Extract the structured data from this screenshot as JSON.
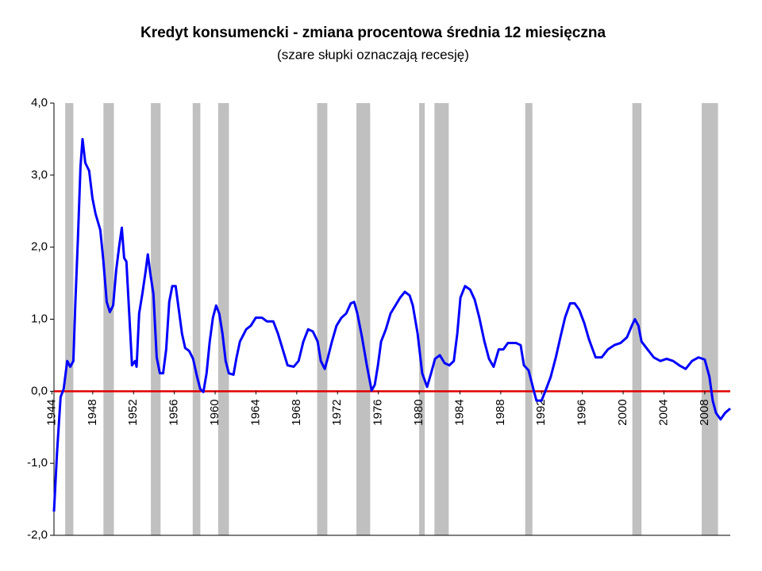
{
  "chart_data": {
    "type": "line",
    "title": "Kredyt konsumencki - zmiana procentowa średnia 12 miesięczna",
    "subtitle": "(szare słupki oznaczają recesję)",
    "x": [
      1944.2,
      1944.5,
      1944.85,
      1945.15,
      1945.5,
      1945.8,
      1946.1,
      1946.3,
      1946.55,
      1946.8,
      1947.0,
      1947.27,
      1947.65,
      1947.97,
      1948.28,
      1948.74,
      1949.05,
      1949.37,
      1949.68,
      1950.0,
      1950.3,
      1950.6,
      1950.85,
      1951.08,
      1951.3,
      1951.6,
      1951.85,
      1952.15,
      1952.3,
      1952.55,
      1952.86,
      1953.2,
      1953.4,
      1953.65,
      1953.95,
      1954.27,
      1954.58,
      1954.9,
      1955.2,
      1955.5,
      1955.8,
      1956.13,
      1956.44,
      1956.75,
      1957.06,
      1957.45,
      1957.84,
      1958.23,
      1958.54,
      1958.85,
      1959.16,
      1959.47,
      1959.78,
      1960.1,
      1960.4,
      1960.72,
      1961.03,
      1961.34,
      1961.8,
      1962.1,
      1962.43,
      1963.05,
      1963.5,
      1963.98,
      1964.6,
      1965.07,
      1965.7,
      1966.16,
      1966.63,
      1967.1,
      1967.7,
      1968.18,
      1968.65,
      1969.12,
      1969.58,
      1970.05,
      1970.36,
      1970.75,
      1971.06,
      1971.45,
      1971.9,
      1972.38,
      1972.85,
      1973.3,
      1973.63,
      1973.94,
      1974.4,
      1974.87,
      1975.34,
      1975.65,
      1975.96,
      1976.27,
      1976.74,
      1977.2,
      1977.67,
      1978.14,
      1978.6,
      1979.07,
      1979.38,
      1979.85,
      1980.3,
      1980.78,
      1981.17,
      1981.56,
      1982.03,
      1982.5,
      1982.96,
      1983.4,
      1983.74,
      1984.05,
      1984.5,
      1985.0,
      1985.45,
      1985.9,
      1986.4,
      1986.85,
      1987.3,
      1987.8,
      1988.25,
      1988.7,
      1989.5,
      1989.95,
      1990.27,
      1990.73,
      1991.2,
      1991.5,
      1992.0,
      1992.45,
      1992.9,
      1993.4,
      1993.85,
      1994.3,
      1994.8,
      1995.25,
      1995.7,
      1996.2,
      1996.65,
      1997.3,
      1997.9,
      1998.5,
      1999.13,
      1999.75,
      2000.38,
      2000.85,
      2001.15,
      2001.5,
      2001.8,
      2002.4,
      2003.0,
      2003.65,
      2004.26,
      2004.9,
      2005.5,
      2006.13,
      2006.75,
      2007.38,
      2008.0,
      2008.46,
      2008.78,
      2009.1,
      2009.55,
      2010.0,
      2010.5
    ],
    "values": [
      -1.67,
      -0.85,
      -0.08,
      0.03,
      0.42,
      0.34,
      0.42,
      1.24,
      2.13,
      3.12,
      3.5,
      3.17,
      3.06,
      2.68,
      2.46,
      2.24,
      1.8,
      1.24,
      1.1,
      1.19,
      1.68,
      2.02,
      2.27,
      1.85,
      1.8,
      1.02,
      0.36,
      0.42,
      0.34,
      1.08,
      1.35,
      1.68,
      1.9,
      1.63,
      1.35,
      0.47,
      0.25,
      0.25,
      0.58,
      1.24,
      1.46,
      1.46,
      1.13,
      0.8,
      0.6,
      0.56,
      0.45,
      0.2,
      0.03,
      -0.01,
      0.25,
      0.69,
      1.02,
      1.19,
      1.08,
      0.8,
      0.42,
      0.25,
      0.23,
      0.47,
      0.69,
      0.86,
      0.91,
      1.02,
      1.02,
      0.97,
      0.97,
      0.8,
      0.58,
      0.36,
      0.34,
      0.42,
      0.69,
      0.86,
      0.83,
      0.69,
      0.42,
      0.31,
      0.47,
      0.69,
      0.91,
      1.02,
      1.08,
      1.22,
      1.24,
      1.08,
      0.75,
      0.36,
      0.01,
      0.09,
      0.36,
      0.69,
      0.86,
      1.08,
      1.19,
      1.3,
      1.38,
      1.33,
      1.19,
      0.8,
      0.25,
      0.06,
      0.25,
      0.45,
      0.5,
      0.39,
      0.36,
      0.42,
      0.8,
      1.3,
      1.46,
      1.41,
      1.27,
      1.02,
      0.69,
      0.45,
      0.34,
      0.58,
      0.58,
      0.67,
      0.67,
      0.64,
      0.36,
      0.29,
      0.03,
      -0.13,
      -0.13,
      0.03,
      0.2,
      0.47,
      0.75,
      1.02,
      1.22,
      1.22,
      1.13,
      0.94,
      0.72,
      0.47,
      0.47,
      0.58,
      0.64,
      0.67,
      0.75,
      0.91,
      1.0,
      0.91,
      0.69,
      0.58,
      0.47,
      0.42,
      0.45,
      0.42,
      0.36,
      0.31,
      0.42,
      0.47,
      0.44,
      0.2,
      -0.13,
      -0.3,
      -0.39,
      -0.3,
      -0.24
    ],
    "color": "#0000ff",
    "zero_line_color": "#e00000",
    "recession_color": "#c0c0c0",
    "recessions": [
      [
        1945.3,
        1946.1
      ],
      [
        1949.05,
        1950.07
      ],
      [
        1953.7,
        1954.65
      ],
      [
        1957.8,
        1958.55
      ],
      [
        1960.3,
        1961.35
      ],
      [
        1970.0,
        1971.0
      ],
      [
        1973.85,
        1975.2
      ],
      [
        1980.0,
        1980.55
      ],
      [
        1981.5,
        1982.9
      ],
      [
        1990.4,
        1991.1
      ],
      [
        2000.9,
        2001.8
      ],
      [
        2007.7,
        2009.3
      ]
    ],
    "xlim": [
      1944.2,
      2010.5
    ],
    "xticks": [
      1944,
      1948,
      1952,
      1956,
      1960,
      1964,
      1968,
      1972,
      1976,
      1980,
      1984,
      1988,
      1992,
      1996,
      2000,
      2004,
      2008
    ],
    "ylim": [
      -2,
      4
    ],
    "yticks": [
      {
        "value": -2,
        "label": "-2,0"
      },
      {
        "value": -1,
        "label": "-1,0"
      },
      {
        "value": 0,
        "label": "0,0"
      },
      {
        "value": 1,
        "label": "1,0"
      },
      {
        "value": 2,
        "label": "2,0"
      },
      {
        "value": 3,
        "label": "3,0"
      },
      {
        "value": 4,
        "label": "4,0"
      }
    ]
  }
}
